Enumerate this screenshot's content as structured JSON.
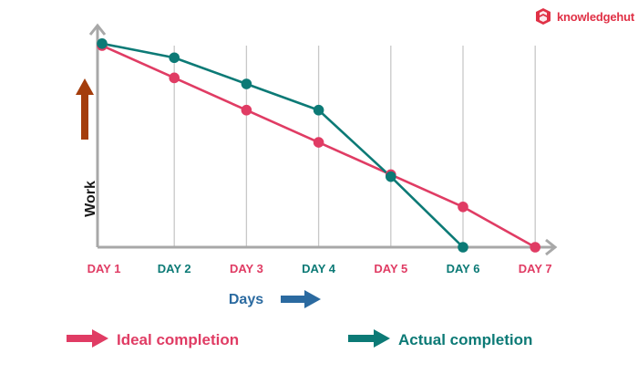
{
  "brand": {
    "name": "knowledgehut",
    "color": "#e03146",
    "icon": "knowledgehut-logo-icon"
  },
  "colors": {
    "ideal": "#e03c64",
    "actual": "#0c7a76",
    "axis": "#a8a8a8",
    "grid": "#c8c8c8",
    "work_arrow": "#a43d0c",
    "days_arrow": "#2b6aa0",
    "days_label": "#2b6aa0"
  },
  "chart_data": {
    "type": "line",
    "title": "",
    "xlabel": "Days",
    "ylabel": "Work",
    "categories": [
      "DAY 1",
      "DAY 2",
      "DAY 3",
      "DAY 4",
      "DAY 5",
      "DAY 6",
      "DAY 7"
    ],
    "category_label_colors": [
      "#e03c64",
      "#0c7a76",
      "#e03c64",
      "#0c7a76",
      "#e03c64",
      "#0c7a76",
      "#e03c64"
    ],
    "ylim": [
      0,
      100
    ],
    "grid": "vertical",
    "legend": "bottom",
    "series": [
      {
        "name": "Ideal completion",
        "color": "#e03c64",
        "x": [
          1,
          2,
          3,
          4,
          5,
          6,
          7
        ],
        "values": [
          100,
          84,
          68,
          52,
          36,
          20,
          0
        ]
      },
      {
        "name": "Actual completion",
        "color": "#0c7a76",
        "x": [
          1,
          2,
          3,
          4,
          5,
          6
        ],
        "values": [
          101,
          94,
          81,
          68,
          35,
          0
        ]
      }
    ]
  }
}
